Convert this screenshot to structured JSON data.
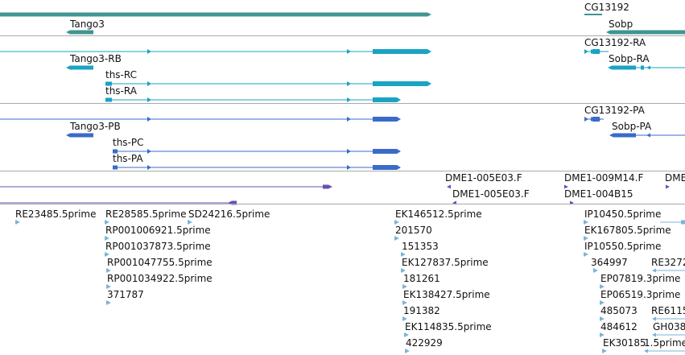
{
  "colors": {
    "gene": "#3f9591",
    "transcript_flybase": "#1aa3c2",
    "transcript_ref": "#3a6bc9",
    "clone": "#6a4fb3",
    "est": "#7ab4da",
    "separator": "#a9a9a9"
  },
  "tracks": {
    "genes": {
      "labels": [
        "Tango3",
        "CG13192",
        "Sobp"
      ]
    },
    "flybase_transcripts": {
      "labels": [
        "Tango3-RB",
        "ths-RC",
        "ths-RA",
        "CG13192-RA",
        "Sobp-RA"
      ]
    },
    "ref_transcripts": {
      "labels": [
        "Tango3-PB",
        "ths-PC",
        "ths-PA",
        "CG13192-PA",
        "Sobp-PA"
      ]
    },
    "clones": {
      "labels": [
        "DME1-005E03.F",
        "DME1-005E03.F",
        "DME1-009M14.F",
        "DME1-004B15",
        "DME"
      ]
    },
    "ests": {
      "labels": [
        "RE23485.5prime",
        "RE28585.5prime",
        "SD24216.5prime",
        "RP001006921.5prime",
        "RP001037873.5prime",
        "RP001047755.5prime",
        "RP001034922.5prime",
        "371787",
        "EK146512.5prime",
        "201570",
        "151353",
        "EK127837.5prime",
        "181261",
        "EK138427.5prime",
        "191382",
        "EK114835.5prime",
        "422929",
        "IP10450.5prime",
        "EK167805.5prime",
        "IP10550.5prime",
        "364997",
        "RE3272",
        "EP07819.3prime",
        "EP06519.3prime",
        "485073",
        "RE6115",
        "484612",
        "GH038",
        "EK30185",
        "1.5prime"
      ]
    }
  }
}
